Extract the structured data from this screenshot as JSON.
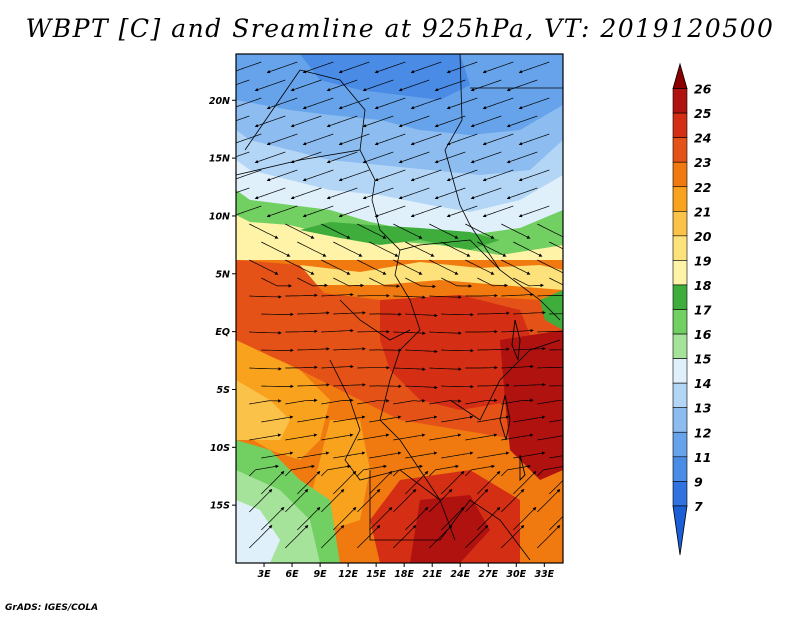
{
  "title": "WBPT [C] and Sreamline at 925hPa, VT: 2019120500",
  "credit": "GrADS: IGES/COLA",
  "map": {
    "variable": "Wet-bulb potential temperature",
    "units": "C",
    "level": "925hPa",
    "valid_time": "2019120500",
    "lon_range": [
      0,
      35
    ],
    "lat_range": [
      -20,
      24
    ],
    "lat_ticks": [
      {
        "value": 20,
        "label": "20N"
      },
      {
        "value": 15,
        "label": "15N"
      },
      {
        "value": 10,
        "label": "10N"
      },
      {
        "value": 5,
        "label": "5N"
      },
      {
        "value": 0,
        "label": "EQ"
      },
      {
        "value": -5,
        "label": "5S"
      },
      {
        "value": -10,
        "label": "10S"
      },
      {
        "value": -15,
        "label": "15S"
      }
    ],
    "lon_ticks": [
      {
        "value": 3,
        "label": "3E"
      },
      {
        "value": 6,
        "label": "6E"
      },
      {
        "value": 9,
        "label": "9E"
      },
      {
        "value": 12,
        "label": "12E"
      },
      {
        "value": 15,
        "label": "15E"
      },
      {
        "value": 18,
        "label": "18E"
      },
      {
        "value": 21,
        "label": "21E"
      },
      {
        "value": 24,
        "label": "24E"
      },
      {
        "value": 27,
        "label": "27E"
      },
      {
        "value": 30,
        "label": "30E"
      },
      {
        "value": 33,
        "label": "33E"
      }
    ]
  },
  "colorbar": {
    "levels": [
      "7",
      "9",
      "11",
      "12",
      "13",
      "14",
      "15",
      "16",
      "17",
      "18",
      "19",
      "20",
      "21",
      "22",
      "23",
      "24",
      "25",
      "26"
    ],
    "colors": [
      "#1a5fd6",
      "#2f72e0",
      "#4a8be6",
      "#66a3ea",
      "#8cbcf0",
      "#b4d6f6",
      "#e0f0fb",
      "#a6e39a",
      "#72cf62",
      "#3fad3c",
      "#fef3a6",
      "#fde17a",
      "#fbc24a",
      "#f8a21e",
      "#f07a10",
      "#e55218",
      "#d42e14",
      "#b01210",
      "#8a0000"
    ]
  }
}
